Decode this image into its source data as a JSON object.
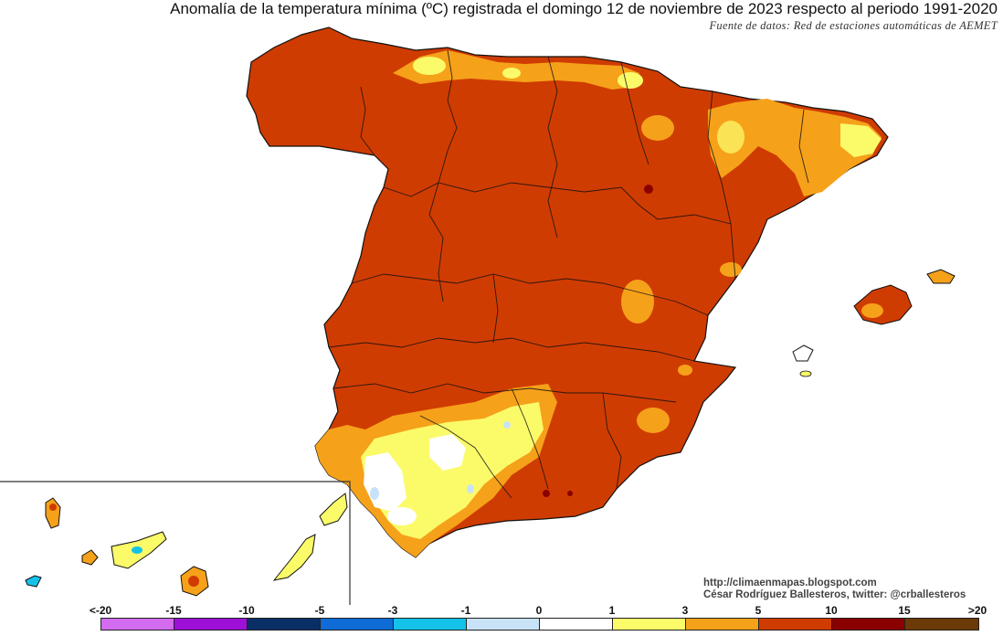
{
  "title": "Anomalía de la temperatura mínima (ºC) registrada el domingo 12 de noviembre de 2023 respecto al periodo 1991-2020",
  "source": "Fuente de datos: Red de estaciones automáticas de AEMET",
  "credits": {
    "blog": "http://climaenmapas.blogspot.com",
    "author": "César Rodríguez Ballesteros, twitter: @crballesteros"
  },
  "legend": {
    "ticks": [
      "<-20",
      "-15",
      "-10",
      "-5",
      "-3",
      "-1",
      "0",
      "1",
      "3",
      "5",
      "10",
      "15",
      ">20"
    ],
    "colors": [
      "#d26bee",
      "#9c10d8",
      "#0a2f66",
      "#0f6bd6",
      "#14c2e8",
      "#c8e3f8",
      "#ffffff",
      "#fbfb6a",
      "#f6a11a",
      "#cf3c02",
      "#8a0000",
      "#6b3a07"
    ]
  },
  "map_colors": {
    "dominant": "#cf3c02",
    "warm_orange": "#f6a11a",
    "yellow": "#fbfb6a",
    "white": "#ffffff",
    "light_blue": "#c8e3f8",
    "dark_red": "#8a0000"
  }
}
